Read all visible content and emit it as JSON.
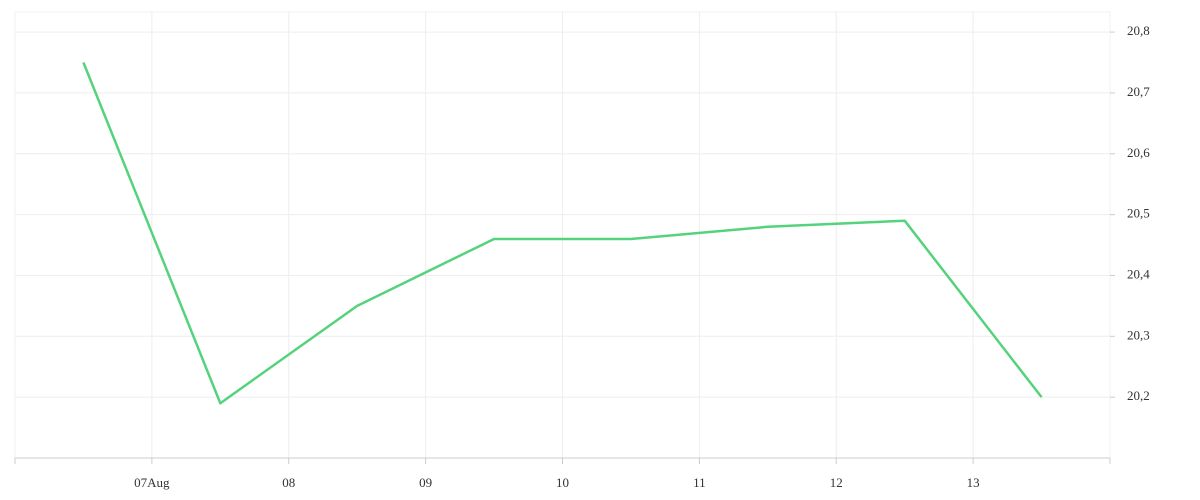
{
  "chart_data": {
    "type": "line",
    "x": [
      6.5,
      7.5,
      8.5,
      9.5,
      10.5,
      11.5,
      12.5,
      13.5
    ],
    "values": [
      20.75,
      20.19,
      20.35,
      20.46,
      20.46,
      20.48,
      20.49,
      20.2
    ],
    "color": "#55d27c",
    "xlim": [
      6,
      14
    ],
    "xticks": [
      {
        "value": 7,
        "label": "07Aug"
      },
      {
        "value": 8,
        "label": "08"
      },
      {
        "value": 9,
        "label": "09"
      },
      {
        "value": 10,
        "label": "10"
      },
      {
        "value": 11,
        "label": "11"
      },
      {
        "value": 12,
        "label": "12"
      },
      {
        "value": 13,
        "label": "13"
      }
    ],
    "ylim": [
      20.1,
      20.833
    ],
    "yticks": [
      {
        "value": 20.2,
        "label": "20,2"
      },
      {
        "value": 20.3,
        "label": "20,3"
      },
      {
        "value": 20.4,
        "label": "20,4"
      },
      {
        "value": 20.5,
        "label": "20,5"
      },
      {
        "value": 20.6,
        "label": "20,6"
      },
      {
        "value": 20.7,
        "label": "20,7"
      },
      {
        "value": 20.8,
        "label": "20,8"
      }
    ],
    "grid": true
  }
}
